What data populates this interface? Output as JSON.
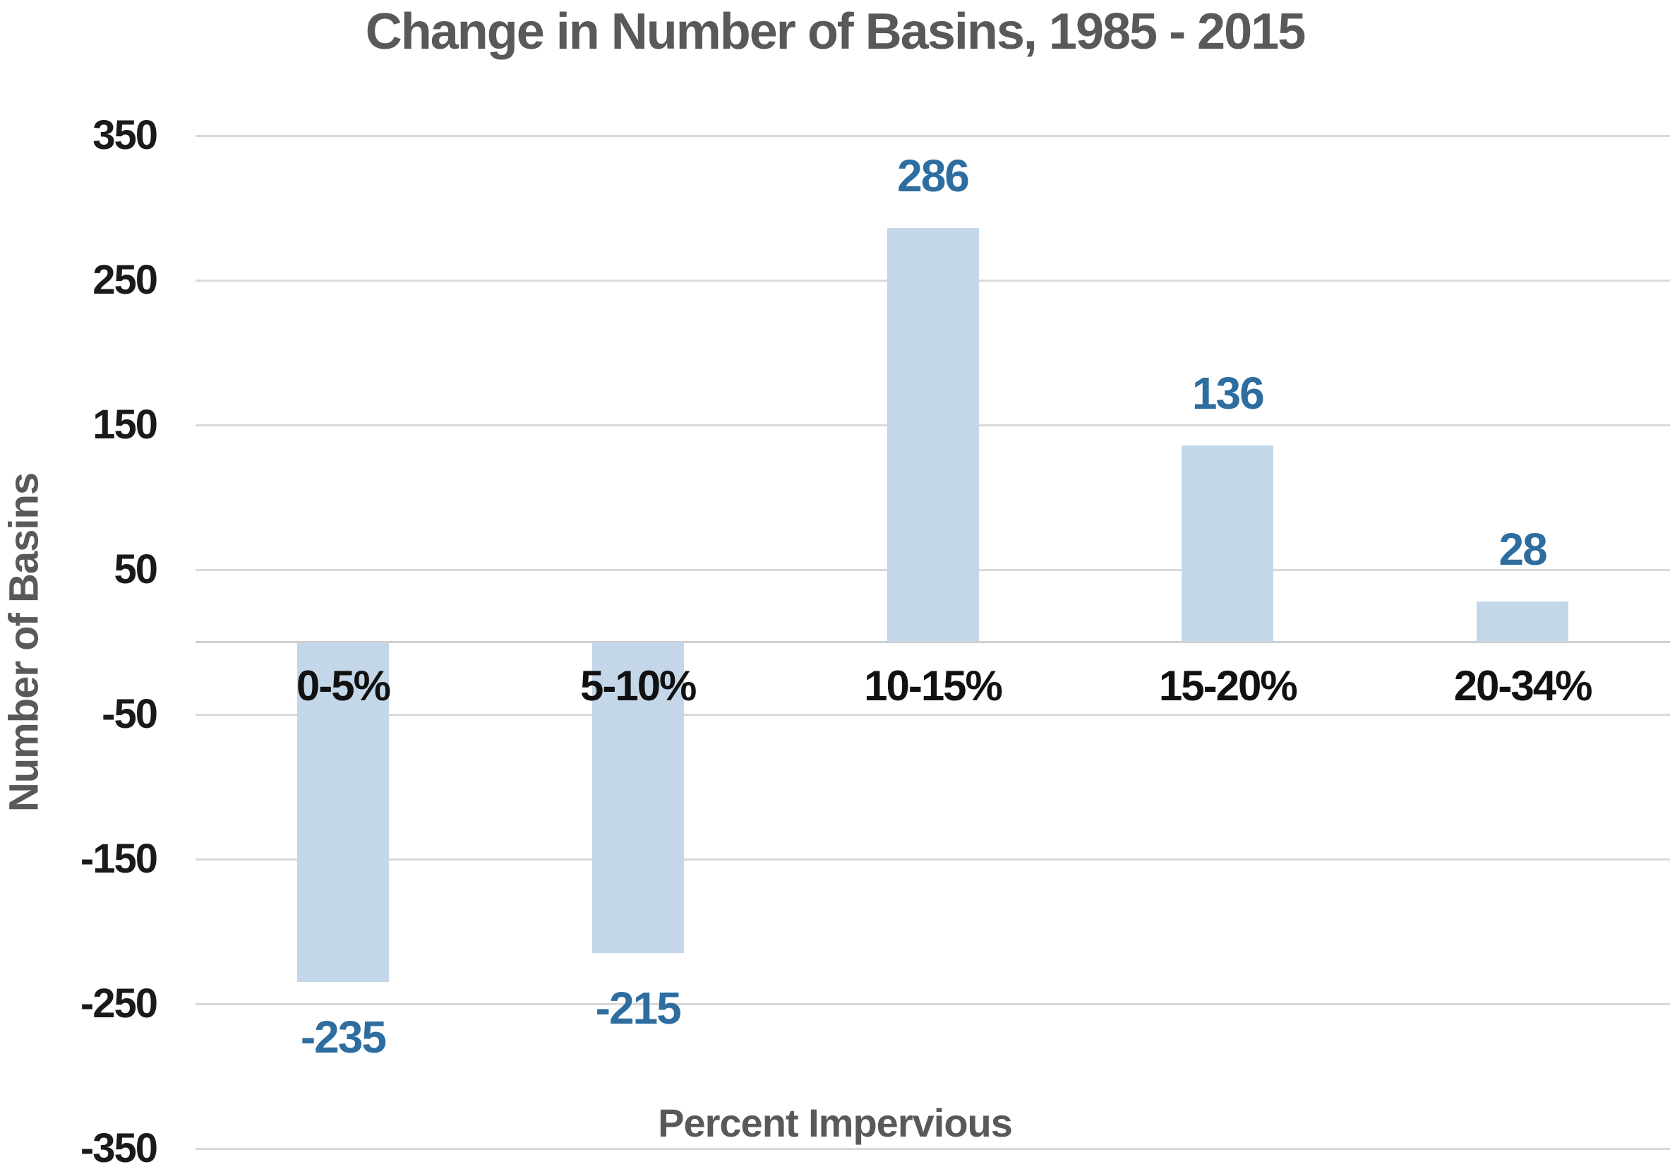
{
  "chart_data": {
    "type": "bar",
    "title": "Change in Number of Basins, 1985 - 2015",
    "xlabel": "Percent Impervious",
    "ylabel": "Number of Basins",
    "categories": [
      "0-5%",
      "5-10%",
      "10-15%",
      "15-20%",
      "20-34%"
    ],
    "values": [
      -235,
      -215,
      286,
      136,
      28
    ],
    "data_labels": [
      "-235",
      "-215",
      "286",
      "136",
      "28"
    ],
    "yticks": [
      350,
      250,
      150,
      50,
      -50,
      -150,
      -250,
      -350
    ],
    "ylim": [
      -350,
      350
    ],
    "grid": "horizontal-only",
    "legend": "none",
    "colors": {
      "bar_fill": "#C3D7E8",
      "data_label": "#2E6D9F",
      "title": "#595959",
      "axis_title": "#595959",
      "tick_label": "#1A1A1A",
      "category_label": "#111111",
      "gridline": "#D9D9D9",
      "zero_line": "#CFCFCF",
      "background": "#FFFFFF"
    }
  }
}
